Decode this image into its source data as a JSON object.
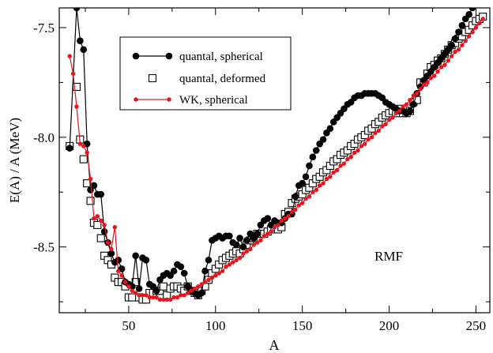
{
  "chart_data": {
    "type": "line",
    "xlabel": "A",
    "ylabel": "E(A) / A  (MeV)",
    "xlim": [
      10,
      258
    ],
    "ylim": [
      -8.8,
      -7.41
    ],
    "xticks": [
      50,
      100,
      150,
      200,
      250
    ],
    "xticks_minor": [
      25,
      75,
      125,
      175,
      225
    ],
    "yticks": [
      -7.5,
      -8.0,
      -8.5
    ],
    "yticks_minor": [
      -7.75,
      -8.25,
      -8.75
    ],
    "grid": false,
    "legend_position": "upper-left",
    "annotation": "RMF",
    "series": [
      {
        "name": "quantal, spherical",
        "marker": "filled-circle",
        "line": true,
        "color": "#000000",
        "x": [
          16,
          20,
          22,
          24,
          26,
          28,
          30,
          32,
          34,
          36,
          38,
          40,
          42,
          44,
          46,
          48,
          50,
          52,
          54,
          56,
          58,
          60,
          62,
          64,
          66,
          68,
          70,
          72,
          74,
          76,
          78,
          80,
          82,
          84,
          86,
          88,
          90,
          92,
          94,
          96,
          98,
          100,
          102,
          104,
          106,
          108,
          110,
          112,
          114,
          116,
          118,
          120,
          122,
          124,
          126,
          128,
          130,
          132,
          134,
          136,
          138,
          140,
          142,
          144,
          146,
          148,
          150,
          152,
          154,
          156,
          158,
          160,
          162,
          164,
          166,
          168,
          170,
          172,
          174,
          176,
          178,
          180,
          182,
          184,
          186,
          188,
          190,
          192,
          194,
          196,
          198,
          200,
          202,
          204,
          206,
          208,
          210,
          212,
          214,
          216,
          218,
          220,
          222,
          224,
          226,
          228,
          230,
          232,
          234,
          236,
          238,
          240,
          242,
          244,
          246,
          248,
          250,
          252,
          254
        ],
        "y": [
          -8.05,
          -7.41,
          -7.56,
          -7.6,
          -8.03,
          -8.24,
          -8.22,
          -8.26,
          -8.26,
          -8.43,
          -8.48,
          -8.53,
          -8.57,
          -8.56,
          -8.6,
          -8.66,
          -8.67,
          -8.68,
          -8.54,
          -8.69,
          -8.55,
          -8.56,
          -8.67,
          -8.68,
          -8.7,
          -8.65,
          -8.63,
          -8.62,
          -8.63,
          -8.61,
          -8.58,
          -8.59,
          -8.62,
          -8.68,
          -8.7,
          -8.71,
          -8.72,
          -8.71,
          -8.61,
          -8.56,
          -8.47,
          -8.46,
          -8.45,
          -8.46,
          -8.45,
          -8.45,
          -8.48,
          -8.49,
          -8.46,
          -8.5,
          -8.47,
          -8.44,
          -8.46,
          -8.44,
          -8.4,
          -8.38,
          -8.37,
          -8.4,
          -8.38,
          -8.39,
          -8.39,
          -8.37,
          -8.35,
          -8.35,
          -8.27,
          -8.22,
          -8.21,
          -8.18,
          -8.13,
          -8.09,
          -8.06,
          -8.03,
          -8.01,
          -7.98,
          -7.96,
          -7.93,
          -7.91,
          -7.89,
          -7.87,
          -7.85,
          -7.84,
          -7.82,
          -7.81,
          -7.81,
          -7.8,
          -7.8,
          -7.8,
          -7.8,
          -7.81,
          -7.82,
          -7.84,
          -7.85,
          -7.86,
          -7.87,
          -7.88,
          -7.88,
          -7.89,
          -7.88,
          -7.85,
          -7.8,
          -7.77,
          -7.74,
          -7.72,
          -7.7,
          -7.68,
          -7.66,
          -7.64,
          -7.62,
          -7.6,
          -7.58,
          -7.55,
          -7.52,
          -7.49,
          -7.46,
          -7.44,
          -7.41,
          -7.39,
          -7.37,
          -7.36
        ]
      },
      {
        "name": "quantal, deformed",
        "marker": "open-square",
        "line": false,
        "color": "#000000",
        "x": [
          16,
          20,
          22,
          24,
          26,
          28,
          30,
          32,
          34,
          36,
          38,
          40,
          42,
          44,
          46,
          48,
          50,
          52,
          54,
          56,
          58,
          60,
          62,
          64,
          66,
          68,
          70,
          72,
          74,
          76,
          78,
          80,
          82,
          84,
          86,
          88,
          90,
          92,
          94,
          96,
          98,
          100,
          102,
          104,
          106,
          108,
          110,
          112,
          114,
          116,
          118,
          120,
          122,
          124,
          126,
          128,
          130,
          132,
          134,
          136,
          138,
          140,
          142,
          144,
          146,
          148,
          150,
          152,
          154,
          156,
          158,
          160,
          162,
          164,
          166,
          168,
          170,
          172,
          174,
          176,
          178,
          180,
          182,
          184,
          186,
          188,
          190,
          192,
          194,
          196,
          198,
          200,
          202,
          204,
          206,
          208,
          210,
          212,
          214,
          216,
          218,
          220,
          222,
          224,
          226,
          228,
          230,
          232,
          234,
          236,
          238,
          240,
          242,
          244,
          246,
          248,
          250,
          252,
          254
        ],
        "y": [
          -8.04,
          -7.77,
          -8.01,
          -8.1,
          -8.21,
          -8.29,
          -8.39,
          -8.4,
          -8.46,
          -8.54,
          -8.56,
          -8.58,
          -8.64,
          -8.66,
          -8.66,
          -8.68,
          -8.73,
          -8.73,
          -8.66,
          -8.73,
          -8.74,
          -8.74,
          -8.71,
          -8.71,
          -8.7,
          -8.7,
          -8.68,
          -8.72,
          -8.69,
          -8.68,
          -8.68,
          -8.69,
          -8.7,
          -8.68,
          -8.7,
          -8.71,
          -8.72,
          -8.7,
          -8.68,
          -8.65,
          -8.62,
          -8.6,
          -8.58,
          -8.56,
          -8.55,
          -8.54,
          -8.53,
          -8.52,
          -8.53,
          -8.51,
          -8.49,
          -8.47,
          -8.46,
          -8.44,
          -8.44,
          -8.44,
          -8.43,
          -8.42,
          -8.41,
          -8.42,
          -8.41,
          -8.35,
          -8.34,
          -8.3,
          -8.28,
          -8.27,
          -8.26,
          -8.24,
          -8.23,
          -8.21,
          -8.19,
          -8.18,
          -8.16,
          -8.15,
          -8.13,
          -8.11,
          -8.1,
          -8.08,
          -8.07,
          -8.06,
          -8.04,
          -8.03,
          -8.01,
          -8.0,
          -7.99,
          -7.97,
          -7.96,
          -7.94,
          -7.93,
          -7.91,
          -7.9,
          -7.89,
          -7.88,
          -7.89,
          -7.87,
          -7.89,
          -7.89,
          -7.88,
          -7.84,
          -7.83,
          -7.75,
          -7.75,
          -7.71,
          -7.68,
          -7.67,
          -7.65,
          -7.64,
          -7.62,
          -7.6,
          -7.58,
          -7.57,
          -7.55,
          -7.54,
          -7.52,
          -7.51,
          -7.49,
          -7.47,
          -7.46,
          -7.45
        ]
      },
      {
        "name": "WK, spherical",
        "marker": "small-filled-circle",
        "line": true,
        "color": "#e8131b",
        "x": [
          16,
          18,
          20,
          22,
          24,
          26,
          28,
          30,
          32,
          34,
          36,
          38,
          40,
          42,
          44,
          46,
          48,
          50,
          52,
          54,
          56,
          58,
          60,
          62,
          64,
          66,
          68,
          70,
          72,
          74,
          76,
          78,
          80,
          82,
          84,
          86,
          88,
          90,
          92,
          94,
          96,
          98,
          100,
          102,
          104,
          106,
          108,
          110,
          112,
          114,
          116,
          118,
          120,
          122,
          124,
          126,
          128,
          130,
          132,
          134,
          136,
          138,
          140,
          142,
          144,
          146,
          148,
          150,
          152,
          154,
          156,
          158,
          160,
          162,
          164,
          166,
          168,
          170,
          172,
          174,
          176,
          178,
          180,
          182,
          184,
          186,
          188,
          190,
          192,
          194,
          196,
          198,
          200,
          202,
          204,
          206,
          208,
          210,
          212,
          214,
          216,
          218,
          220,
          222,
          224,
          226,
          228,
          230,
          232,
          234,
          236,
          238,
          240,
          242,
          244,
          246,
          248,
          250,
          252,
          254
        ],
        "y": [
          -7.63,
          -7.71,
          -7.86,
          -8.03,
          -8.04,
          -8.07,
          -8.19,
          -8.37,
          -8.36,
          -8.38,
          -8.4,
          -8.48,
          -8.51,
          -8.41,
          -8.61,
          -8.63,
          -8.66,
          -8.68,
          -8.7,
          -8.71,
          -8.72,
          -8.72,
          -8.72,
          -8.73,
          -8.73,
          -8.73,
          -8.74,
          -8.74,
          -8.74,
          -8.74,
          -8.73,
          -8.73,
          -8.72,
          -8.72,
          -8.71,
          -8.7,
          -8.69,
          -8.68,
          -8.67,
          -8.66,
          -8.65,
          -8.64,
          -8.63,
          -8.62,
          -8.61,
          -8.59,
          -8.58,
          -8.57,
          -8.56,
          -8.55,
          -8.53,
          -8.52,
          -8.51,
          -8.49,
          -8.48,
          -8.47,
          -8.45,
          -8.44,
          -8.43,
          -8.41,
          -8.4,
          -8.38,
          -8.37,
          -8.36,
          -8.34,
          -8.33,
          -8.31,
          -8.3,
          -8.28,
          -8.27,
          -8.25,
          -8.24,
          -8.22,
          -8.21,
          -8.19,
          -8.18,
          -8.16,
          -8.15,
          -8.13,
          -8.12,
          -8.1,
          -8.09,
          -8.07,
          -8.06,
          -8.04,
          -8.03,
          -8.01,
          -8.0,
          -7.98,
          -7.97,
          -7.95,
          -7.94,
          -7.92,
          -7.91,
          -7.89,
          -7.88,
          -7.86,
          -7.85,
          -7.83,
          -7.81,
          -7.8,
          -7.78,
          -7.76,
          -7.75,
          -7.73,
          -7.72,
          -7.7,
          -7.68,
          -7.67,
          -7.65,
          -7.63,
          -7.61,
          -7.6,
          -7.58,
          -7.56,
          -7.54,
          -7.52,
          -7.5,
          -7.48,
          -7.46
        ]
      }
    ]
  }
}
